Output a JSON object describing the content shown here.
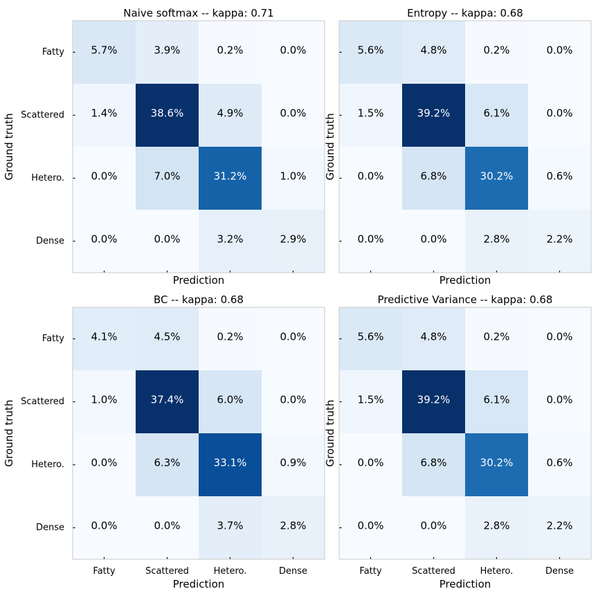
{
  "chart_data": [
    {
      "type": "heatmap",
      "title": "Naive softmax -- kappa: 0.71",
      "xlabel": "Prediction",
      "ylabel": "Ground truth",
      "x_categories": [
        "Fatty",
        "Scattered",
        "Hetero.",
        "Dense"
      ],
      "y_categories": [
        "Fatty",
        "Scattered",
        "Hetero.",
        "Dense"
      ],
      "show_xticklabels": false,
      "show_yticklabels": true,
      "values": [
        [
          5.7,
          3.9,
          0.2,
          0.0
        ],
        [
          1.4,
          38.6,
          4.9,
          0.0
        ],
        [
          0.0,
          7.0,
          31.2,
          1.0
        ],
        [
          0.0,
          0.0,
          3.2,
          2.9
        ]
      ],
      "labels": [
        [
          "5.7%",
          "3.9%",
          "0.2%",
          "0.0%"
        ],
        [
          "1.4%",
          "38.6%",
          "4.9%",
          "0.0%"
        ],
        [
          "0.0%",
          "7.0%",
          "31.2%",
          "1.0%"
        ],
        [
          "0.0%",
          "0.0%",
          "3.2%",
          "2.9%"
        ]
      ],
      "colormap": "Blues"
    },
    {
      "type": "heatmap",
      "title": "Entropy -- kappa: 0.68",
      "xlabel": "Prediction",
      "ylabel": "Ground truth",
      "x_categories": [
        "Fatty",
        "Scattered",
        "Hetero.",
        "Dense"
      ],
      "y_categories": [
        "Fatty",
        "Scattered",
        "Hetero.",
        "Dense"
      ],
      "show_xticklabels": false,
      "show_yticklabels": false,
      "values": [
        [
          5.6,
          4.8,
          0.2,
          0.0
        ],
        [
          1.5,
          39.2,
          6.1,
          0.0
        ],
        [
          0.0,
          6.8,
          30.2,
          0.6
        ],
        [
          0.0,
          0.0,
          2.8,
          2.2
        ]
      ],
      "labels": [
        [
          "5.6%",
          "4.8%",
          "0.2%",
          "0.0%"
        ],
        [
          "1.5%",
          "39.2%",
          "6.1%",
          "0.0%"
        ],
        [
          "0.0%",
          "6.8%",
          "30.2%",
          "0.6%"
        ],
        [
          "0.0%",
          "0.0%",
          "2.8%",
          "2.2%"
        ]
      ],
      "colormap": "Blues"
    },
    {
      "type": "heatmap",
      "title": "BC -- kappa: 0.68",
      "xlabel": "Prediction",
      "ylabel": "Ground truth",
      "x_categories": [
        "Fatty",
        "Scattered",
        "Hetero.",
        "Dense"
      ],
      "y_categories": [
        "Fatty",
        "Scattered",
        "Hetero.",
        "Dense"
      ],
      "show_xticklabels": true,
      "show_yticklabels": true,
      "values": [
        [
          4.1,
          4.5,
          0.2,
          0.0
        ],
        [
          1.0,
          37.4,
          6.0,
          0.0
        ],
        [
          0.0,
          6.3,
          33.1,
          0.9
        ],
        [
          0.0,
          0.0,
          3.7,
          2.8
        ]
      ],
      "labels": [
        [
          "4.1%",
          "4.5%",
          "0.2%",
          "0.0%"
        ],
        [
          "1.0%",
          "37.4%",
          "6.0%",
          "0.0%"
        ],
        [
          "0.0%",
          "6.3%",
          "33.1%",
          "0.9%"
        ],
        [
          "0.0%",
          "0.0%",
          "3.7%",
          "2.8%"
        ]
      ],
      "colormap": "Blues"
    },
    {
      "type": "heatmap",
      "title": "Predictive Variance -- kappa: 0.68",
      "xlabel": "Prediction",
      "ylabel": "Ground truth",
      "x_categories": [
        "Fatty",
        "Scattered",
        "Hetero.",
        "Dense"
      ],
      "y_categories": [
        "Fatty",
        "Scattered",
        "Hetero.",
        "Dense"
      ],
      "show_xticklabels": true,
      "show_yticklabels": false,
      "values": [
        [
          5.6,
          4.8,
          0.2,
          0.0
        ],
        [
          1.5,
          39.2,
          6.1,
          0.0
        ],
        [
          0.0,
          6.8,
          30.2,
          0.6
        ],
        [
          0.0,
          0.0,
          2.8,
          2.2
        ]
      ],
      "labels": [
        [
          "5.6%",
          "4.8%",
          "0.2%",
          "0.0%"
        ],
        [
          "1.5%",
          "39.2%",
          "6.1%",
          "0.0%"
        ],
        [
          "0.0%",
          "6.8%",
          "30.2%",
          "0.6%"
        ],
        [
          "0.0%",
          "0.0%",
          "2.8%",
          "2.2%"
        ]
      ],
      "colormap": "Blues"
    }
  ]
}
